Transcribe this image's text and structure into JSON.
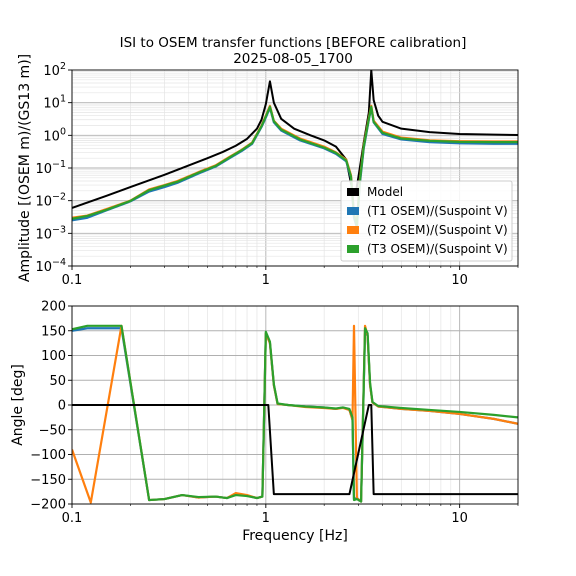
{
  "figure": {
    "title_line1": "ISI to OSEM transfer functions [BEFORE calibration]",
    "title_line2": "2025-08-05_1700"
  },
  "chart_data": [
    {
      "type": "line",
      "panel": "amplitude",
      "xscale": "log",
      "yscale": "log",
      "xlim": [
        0.1,
        20
      ],
      "ylim": [
        0.0001,
        100
      ],
      "ylabel": "Amplitude [(OSEM m)/(GS13 m)]",
      "xlabel": "",
      "grid": true,
      "legend_position": "bottom-right",
      "x_ticks": [
        {
          "v": 0.1,
          "label": "0.1"
        },
        {
          "v": 1,
          "label": "1"
        },
        {
          "v": 10,
          "label": "10"
        }
      ],
      "y_ticks": [
        {
          "v": 0.0001,
          "base": "10",
          "exp": "−4"
        },
        {
          "v": 0.001,
          "base": "10",
          "exp": "−3"
        },
        {
          "v": 0.01,
          "base": "10",
          "exp": "−2"
        },
        {
          "v": 0.1,
          "base": "10",
          "exp": "−1"
        },
        {
          "v": 1,
          "base": "10",
          "exp": "0"
        },
        {
          "v": 10,
          "base": "10",
          "exp": "1"
        },
        {
          "v": 100,
          "base": "10",
          "exp": "2"
        }
      ],
      "series": [
        {
          "name": "Model",
          "color": "#000000",
          "x": [
            0.1,
            0.15,
            0.2,
            0.3,
            0.4,
            0.5,
            0.6,
            0.7,
            0.8,
            0.9,
            0.95,
            1.0,
            1.05,
            1.1,
            1.2,
            1.4,
            1.7,
            2.0,
            2.3,
            2.6,
            2.8,
            2.9,
            3.0,
            3.2,
            3.4,
            3.5,
            3.6,
            3.8,
            4.0,
            5.0,
            7.0,
            10.0,
            15.0,
            20.0
          ],
          "y": [
            0.006,
            0.014,
            0.026,
            0.062,
            0.12,
            0.2,
            0.31,
            0.48,
            0.78,
            1.6,
            3.0,
            9.0,
            45.0,
            10.0,
            3.2,
            1.6,
            1.0,
            0.7,
            0.45,
            0.18,
            0.02,
            0.015,
            0.05,
            0.6,
            5.0,
            100.0,
            12.0,
            4.0,
            2.6,
            1.6,
            1.25,
            1.1,
            1.05,
            1.02
          ]
        },
        {
          "name": "(T1 OSEM)/(Suspoint V)",
          "color": "#1f77b4",
          "x": [
            0.1,
            0.12,
            0.15,
            0.2,
            0.25,
            0.3,
            0.35,
            0.45,
            0.55,
            0.65,
            0.75,
            0.85,
            0.95,
            1.0,
            1.05,
            1.1,
            1.2,
            1.5,
            2.0,
            2.3,
            2.6,
            2.75,
            2.85,
            2.95,
            3.05,
            3.2,
            3.4,
            3.5,
            3.6,
            4.0,
            5.0,
            7.0,
            10.0,
            15.0,
            20.0
          ],
          "y": [
            0.0025,
            0.003,
            0.005,
            0.0095,
            0.019,
            0.026,
            0.035,
            0.068,
            0.11,
            0.2,
            0.33,
            0.55,
            1.8,
            3.5,
            7.0,
            2.5,
            1.4,
            0.7,
            0.4,
            0.27,
            0.16,
            0.05,
            0.003,
            0.0015,
            0.03,
            0.4,
            3.0,
            7.0,
            2.5,
            1.1,
            0.75,
            0.62,
            0.57,
            0.55,
            0.55
          ]
        },
        {
          "name": "(T2 OSEM)/(Suspoint V)",
          "color": "#ff7f0e",
          "x": [
            0.1,
            0.12,
            0.15,
            0.2,
            0.25,
            0.3,
            0.35,
            0.45,
            0.55,
            0.65,
            0.75,
            0.85,
            0.95,
            1.0,
            1.05,
            1.1,
            1.2,
            1.5,
            2.0,
            2.3,
            2.6,
            2.75,
            2.85,
            2.95,
            3.05,
            3.2,
            3.4,
            3.5,
            3.6,
            4.0,
            5.0,
            7.0,
            10.0,
            15.0,
            20.0
          ],
          "y": [
            0.003,
            0.0035,
            0.0055,
            0.01,
            0.022,
            0.03,
            0.04,
            0.075,
            0.12,
            0.22,
            0.36,
            0.6,
            2.0,
            4.0,
            8.0,
            2.8,
            1.6,
            0.8,
            0.45,
            0.3,
            0.18,
            0.06,
            0.004,
            0.002,
            0.04,
            0.5,
            3.5,
            8.0,
            2.8,
            1.3,
            0.85,
            0.7,
            0.66,
            0.65,
            0.65
          ]
        },
        {
          "name": "(T3 OSEM)/(Suspoint V)",
          "color": "#2ca02c",
          "x": [
            0.1,
            0.12,
            0.15,
            0.2,
            0.25,
            0.3,
            0.35,
            0.45,
            0.55,
            0.65,
            0.75,
            0.85,
            0.95,
            1.0,
            1.05,
            1.1,
            1.2,
            1.5,
            2.0,
            2.3,
            2.6,
            2.75,
            2.85,
            2.95,
            3.05,
            3.2,
            3.4,
            3.5,
            3.6,
            4.0,
            5.0,
            7.0,
            10.0,
            15.0,
            20.0
          ],
          "y": [
            0.0028,
            0.0034,
            0.0052,
            0.0098,
            0.021,
            0.029,
            0.038,
            0.072,
            0.115,
            0.21,
            0.35,
            0.58,
            1.9,
            3.8,
            7.5,
            2.7,
            1.5,
            0.75,
            0.42,
            0.29,
            0.17,
            0.055,
            0.0035,
            0.0018,
            0.035,
            0.45,
            3.2,
            7.5,
            2.6,
            1.2,
            0.8,
            0.68,
            0.63,
            0.62,
            0.62
          ]
        }
      ]
    },
    {
      "type": "line",
      "panel": "phase",
      "xscale": "log",
      "yscale": "linear",
      "xlim": [
        0.1,
        20
      ],
      "ylim": [
        -200,
        200
      ],
      "ylabel": "Angle [deg]",
      "xlabel": "Frequency [Hz]",
      "grid": true,
      "x_ticks": [
        {
          "v": 0.1,
          "label": "0.1"
        },
        {
          "v": 1,
          "label": "1"
        },
        {
          "v": 10,
          "label": "10"
        }
      ],
      "y_ticks": [
        {
          "v": -200,
          "label": "−200"
        },
        {
          "v": -150,
          "label": "−150"
        },
        {
          "v": -100,
          "label": "−100"
        },
        {
          "v": -50,
          "label": "−50"
        },
        {
          "v": 0,
          "label": "0"
        },
        {
          "v": 50,
          "label": "50"
        },
        {
          "v": 100,
          "label": "100"
        },
        {
          "v": 150,
          "label": "150"
        },
        {
          "v": 200,
          "label": "200"
        }
      ],
      "series": [
        {
          "name": "Model",
          "color": "#000000",
          "x": [
            0.1,
            1.0,
            1.03,
            1.1,
            2.7,
            3.4,
            3.5,
            3.6,
            20.0
          ],
          "y": [
            0,
            0,
            0,
            -180,
            -180,
            0,
            0,
            -180,
            -180
          ]
        },
        {
          "name": "(T1 OSEM)/(Suspoint V)",
          "color": "#1f77b4",
          "x": [
            0.1,
            0.12,
            0.18,
            0.25,
            0.3,
            0.37,
            0.45,
            0.55,
            0.63,
            0.7,
            0.8,
            0.9,
            0.96,
            1.0,
            1.05,
            1.1,
            1.15,
            1.3,
            1.6,
            2.0,
            2.3,
            2.5,
            2.7,
            2.8,
            2.85,
            2.95,
            3.1,
            3.25,
            3.35,
            3.45,
            3.55,
            3.8,
            5.0,
            7.0,
            10.0,
            15.0,
            20.0
          ],
          "y": [
            150,
            155,
            155,
            -192,
            -190,
            -182,
            -187,
            -185,
            -188,
            -180,
            -183,
            -188,
            -185,
            145,
            125,
            40,
            2,
            0,
            -3,
            -5,
            -8,
            -5,
            -10,
            -30,
            -190,
            -188,
            -195,
            150,
            140,
            40,
            5,
            -3,
            -8,
            -12,
            -18,
            -28,
            -38
          ]
        },
        {
          "name": "(T2 OSEM)/(Suspoint V)",
          "color": "#ff7f0e",
          "x": [
            0.1,
            0.125,
            0.18,
            0.25,
            0.3,
            0.37,
            0.45,
            0.55,
            0.63,
            0.7,
            0.8,
            0.9,
            0.96,
            1.0,
            1.05,
            1.1,
            1.15,
            1.3,
            1.6,
            2.0,
            2.3,
            2.5,
            2.7,
            2.8,
            2.85,
            2.95,
            3.1,
            3.25,
            3.35,
            3.45,
            3.55,
            3.8,
            5.0,
            7.0,
            10.0,
            15.0,
            20.0
          ],
          "y": [
            -90,
            -197,
            160,
            -192,
            -190,
            -182,
            -187,
            -185,
            -188,
            -178,
            -182,
            -188,
            -185,
            145,
            125,
            40,
            2,
            0,
            -4,
            -6,
            -8,
            -6,
            -10,
            -30,
            160,
            -188,
            -195,
            160,
            140,
            40,
            5,
            -3,
            -8,
            -12,
            -18,
            -28,
            -38
          ]
        },
        {
          "name": "(T3 OSEM)/(Suspoint V)",
          "color": "#2ca02c",
          "x": [
            0.1,
            0.12,
            0.18,
            0.25,
            0.3,
            0.37,
            0.45,
            0.55,
            0.63,
            0.7,
            0.8,
            0.9,
            0.96,
            1.0,
            1.05,
            1.1,
            1.15,
            1.3,
            1.6,
            2.0,
            2.3,
            2.5,
            2.7,
            2.8,
            2.85,
            2.95,
            3.1,
            3.25,
            3.35,
            3.45,
            3.55,
            3.8,
            5.0,
            7.0,
            10.0,
            15.0,
            20.0
          ],
          "y": [
            153,
            160,
            160,
            -192,
            -190,
            -182,
            -186,
            -185,
            -188,
            -182,
            -184,
            -188,
            -185,
            148,
            128,
            42,
            3,
            0,
            -3,
            -5,
            -7,
            -5,
            -8,
            -25,
            -192,
            -190,
            -195,
            155,
            145,
            45,
            6,
            -2,
            -6,
            -10,
            -14,
            -20,
            -25
          ]
        }
      ]
    }
  ]
}
